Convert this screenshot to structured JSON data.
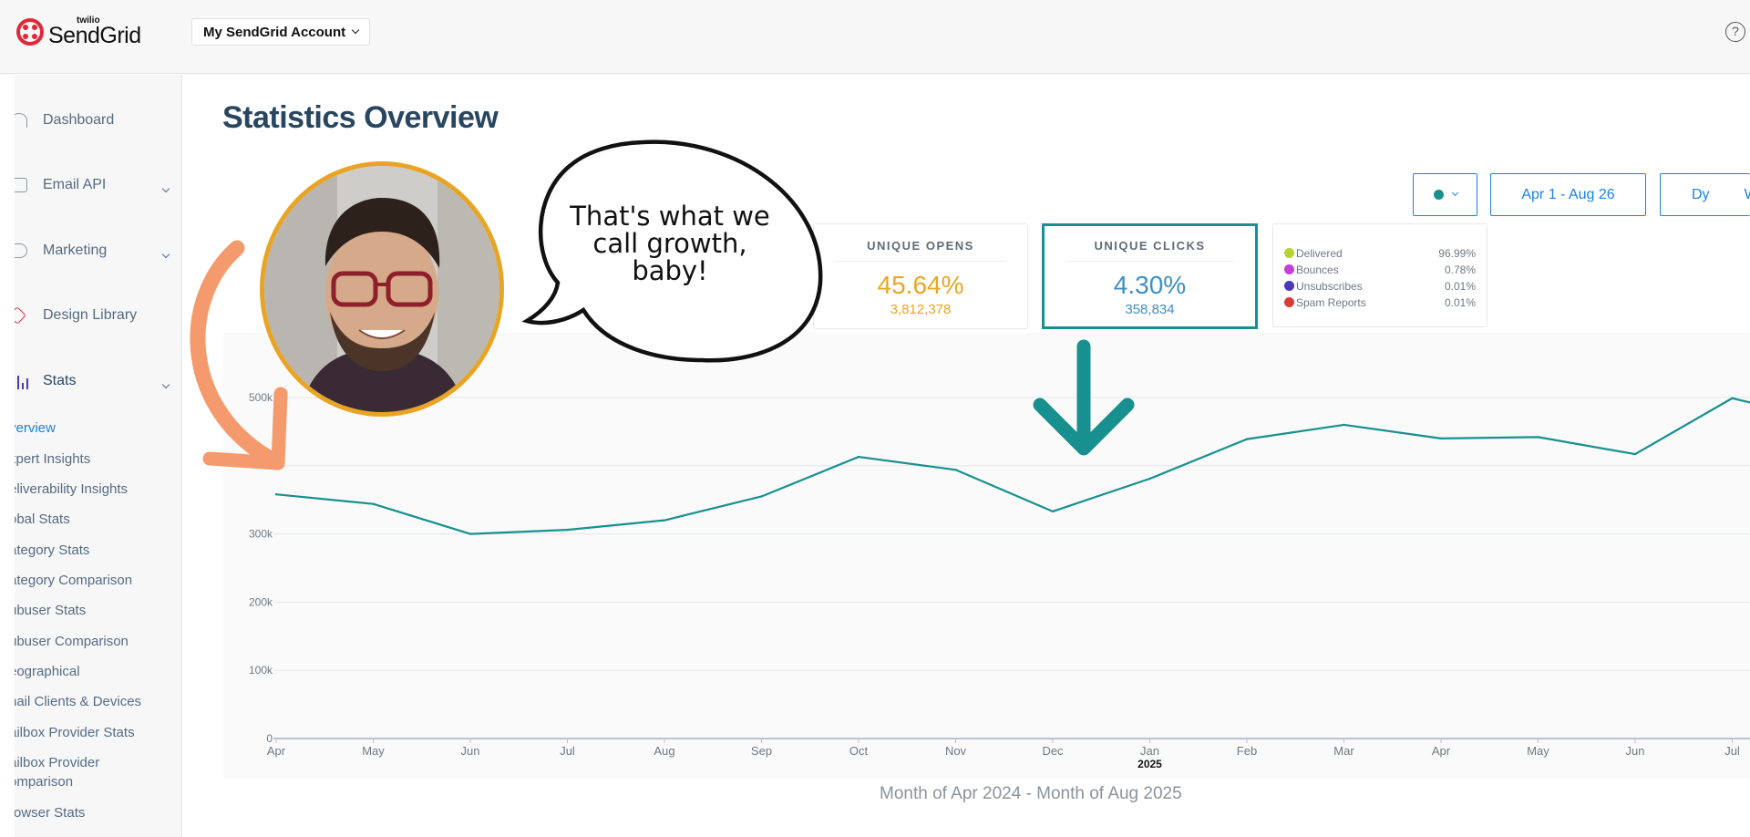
{
  "app": {
    "logo_small": "twilio",
    "logo_big": "SendGrid",
    "account_label": "My SendGrid Account",
    "help_icon": "help-circle-icon"
  },
  "sidebar": {
    "items": [
      {
        "label": "Dashboard",
        "icon": "dashboard-icon"
      },
      {
        "label": "Email API",
        "icon": "email-api-icon"
      },
      {
        "label": "Marketing",
        "icon": "marketing-icon"
      },
      {
        "label": "Design Library",
        "icon": "design-library-icon"
      },
      {
        "label": "Stats",
        "icon": "stats-icon"
      }
    ],
    "stats_subitems": [
      "verview",
      "xpert Insights",
      "eliverability Insights",
      "obal Stats",
      "ategory Stats",
      "ategory Comparison",
      "ubuser Stats",
      "ubuser Comparison",
      "eographical",
      "nail Clients & Devices",
      "ailbox Provider Stats",
      "ailbox Provider",
      "omparison",
      "rowser Stats"
    ]
  },
  "main": {
    "page_title": "Statistics Overview",
    "controls": {
      "date_range": "Apr 1 - Aug 26",
      "dy_label": "Dy",
      "w_label": "W"
    },
    "cards": {
      "opens": {
        "title": "UNIQUE OPENS",
        "percent": "45.64%",
        "count": "3,812,378"
      },
      "clicks": {
        "title": "UNIQUE CLICKS",
        "percent": "4.30%",
        "count": "358,834"
      }
    },
    "legend": [
      {
        "label": "Delivered",
        "value": "96.99%",
        "color": "#b5d334"
      },
      {
        "label": "Bounces",
        "value": "0.78%",
        "color": "#c53fd6"
      },
      {
        "label": "Unsubscribes",
        "value": "0.01%",
        "color": "#4a3ab8"
      },
      {
        "label": "Spam Reports",
        "value": "0.01%",
        "color": "#d93a3a"
      }
    ],
    "x_caption": "Month of Apr 2024 - Month of Aug 2025"
  },
  "overlay": {
    "bubble_text": "That's what we call growth, baby!"
  },
  "chart_data": {
    "type": "line",
    "categories": [
      "Apr",
      "May",
      "Jun",
      "Jul",
      "Aug",
      "Sep",
      "Oct",
      "Nov",
      "Dec",
      "Jan",
      "Feb",
      "Mar",
      "Apr",
      "May",
      "Jun",
      "Jul"
    ],
    "year_marker": {
      "index": 9,
      "label": "2025"
    },
    "series": [
      {
        "color": "#17908f",
        "values": [
          358000,
          344000,
          300000,
          306000,
          320000,
          355000,
          413000,
          394000,
          333000,
          381000,
          439000,
          460000,
          440000,
          442000,
          417000,
          499000
        ]
      }
    ],
    "continues_past_edge": 465000,
    "yticks": [
      0,
      100000,
      200000,
      300000,
      400000,
      500000
    ],
    "ytick_labels": [
      "0",
      "100k",
      "200k",
      "300k",
      "",
      "500k"
    ],
    "ylim": [
      0,
      500000
    ],
    "grid": true
  }
}
